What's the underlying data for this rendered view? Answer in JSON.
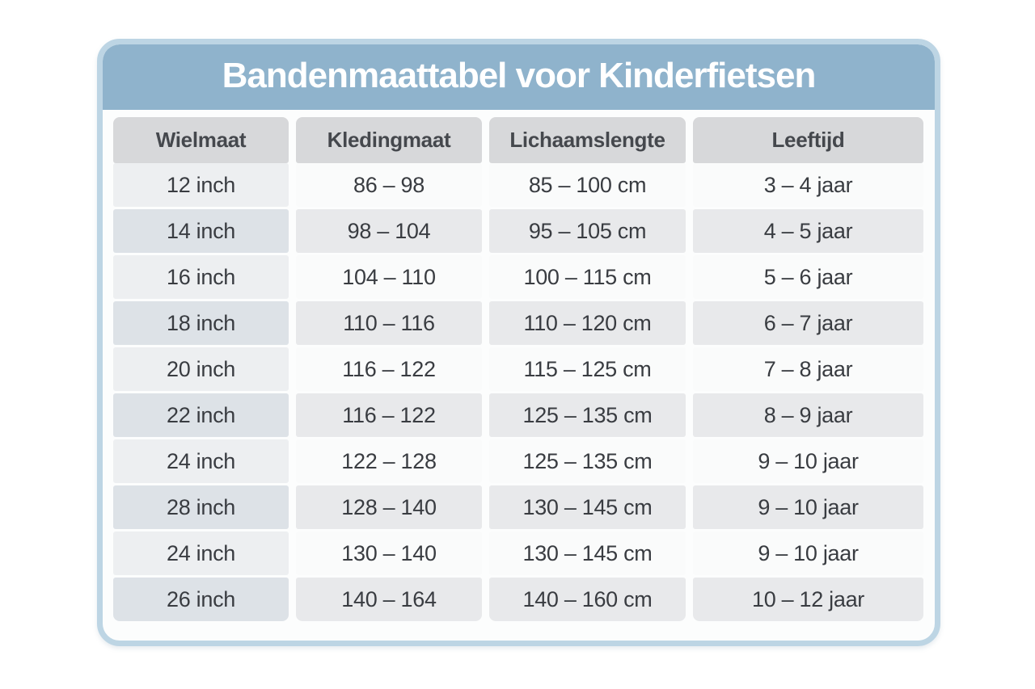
{
  "card": {
    "title": "Bandenmaattabel voor Kinderfietsen"
  },
  "colors": {
    "card_border": "#bdd5e4",
    "header_background": "#8fb3cc",
    "title_text": "#ffffff",
    "column_header_background": "#d7d8da",
    "column_header_text": "#45484d",
    "cell_text": "#393c41",
    "row_odd": "#fafbfb",
    "row_even": "#e8e9eb",
    "first_column_odd": "#edeff1",
    "first_column_even": "#dde2e7"
  },
  "chart_data": {
    "type": "table",
    "title": "Bandenmaattabel voor Kinderfietsen",
    "columns": [
      "Wielmaat",
      "Kledingmaat",
      "Lichaamslengte",
      "Leeftijd"
    ],
    "rows": [
      [
        "12 inch",
        "86 – 98",
        "85 – 100 cm",
        "3 – 4 jaar"
      ],
      [
        "14 inch",
        "98 – 104",
        "95 – 105 cm",
        "4 – 5 jaar"
      ],
      [
        "16 inch",
        "104 – 110",
        "100 – 115 cm",
        "5 – 6 jaar"
      ],
      [
        "18 inch",
        "110 – 116",
        "110 – 120 cm",
        "6 – 7 jaar"
      ],
      [
        "20 inch",
        "116 – 122",
        "115 – 125 cm",
        "7 – 8 jaar"
      ],
      [
        "22 inch",
        "116 – 122",
        "125 – 135 cm",
        "8 – 9 jaar"
      ],
      [
        "24 inch",
        "122 – 128",
        "125 – 135 cm",
        "9 – 10 jaar"
      ],
      [
        "28 inch",
        "128 – 140",
        "130 – 145 cm",
        "9 – 10 jaar"
      ],
      [
        "24 inch",
        "130 – 140",
        "130 – 145 cm",
        "9 – 10 jaar"
      ],
      [
        "26 inch",
        "140 – 164",
        "140 – 160 cm",
        "10 – 12 jaar"
      ]
    ],
    "layout_hints": {
      "striped_rows": true,
      "first_column_tinted": true,
      "header_row": true
    }
  }
}
